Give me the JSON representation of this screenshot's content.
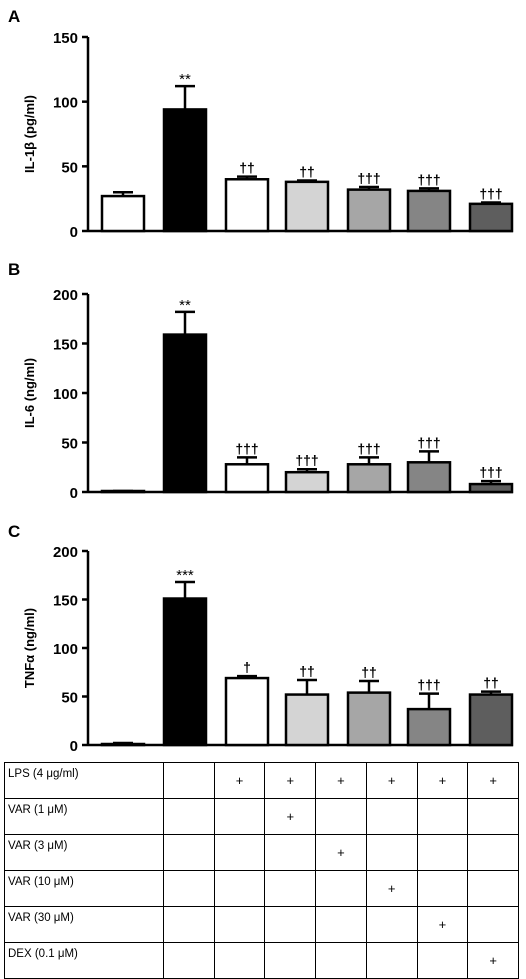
{
  "chart_data": [
    {
      "type": "bar",
      "panel_label": "A",
      "ylabel": "IL-1β (pg/ml)",
      "ylim": [
        0,
        150
      ],
      "yticks": [
        0,
        50,
        100,
        150
      ],
      "values": [
        27,
        94,
        40,
        38,
        32,
        31,
        21
      ],
      "errors": [
        3,
        18,
        2,
        1,
        2,
        2,
        1
      ],
      "annotations": [
        "",
        "**",
        "††",
        "††",
        "†††",
        "†††",
        "†††"
      ],
      "colors": [
        "#ffffff",
        "#000000",
        "#ffffff",
        "#d4d4d4",
        "#a6a6a6",
        "#858585",
        "#5e5e5e"
      ]
    },
    {
      "type": "bar",
      "panel_label": "B",
      "ylabel": "IL-6 (ng/ml)",
      "ylim": [
        0,
        200
      ],
      "yticks": [
        0,
        50,
        100,
        150,
        200
      ],
      "values": [
        0.5,
        159,
        28,
        20,
        28,
        30,
        8
      ],
      "errors": [
        0.5,
        23,
        7,
        3,
        7,
        11,
        3
      ],
      "annotations": [
        "",
        "**",
        "†††",
        "†††",
        "†††",
        "†††",
        "†††"
      ],
      "colors": [
        "#ffffff",
        "#000000",
        "#ffffff",
        "#d4d4d4",
        "#a6a6a6",
        "#858585",
        "#5e5e5e"
      ]
    },
    {
      "type": "bar",
      "panel_label": "C",
      "ylabel": "TNFα (ng/ml)",
      "ylim": [
        0,
        200
      ],
      "yticks": [
        0,
        50,
        100,
        150,
        200
      ],
      "values": [
        1,
        151,
        69,
        52,
        54,
        37,
        52
      ],
      "errors": [
        1,
        17,
        2,
        15,
        12,
        16,
        3
      ],
      "annotations": [
        "",
        "***",
        "†",
        "††",
        "††",
        "†††",
        "††"
      ],
      "colors": [
        "#ffffff",
        "#000000",
        "#ffffff",
        "#d4d4d4",
        "#a6a6a6",
        "#858585",
        "#5e5e5e"
      ]
    }
  ],
  "conditions_table": {
    "rows": [
      {
        "label": "LPS (4 μg/ml)",
        "cells": [
          "",
          "+",
          "+",
          "+",
          "+",
          "+",
          "+"
        ]
      },
      {
        "label": "VAR (1 μM)",
        "cells": [
          "",
          "",
          "+",
          "",
          "",
          "",
          ""
        ]
      },
      {
        "label": "VAR (3 μM)",
        "cells": [
          "",
          "",
          "",
          "+",
          "",
          "",
          ""
        ]
      },
      {
        "label": "VAR (10 μM)",
        "cells": [
          "",
          "",
          "",
          "",
          "+",
          "",
          ""
        ]
      },
      {
        "label": "VAR (30 μM)",
        "cells": [
          "",
          "",
          "",
          "",
          "",
          "+",
          ""
        ]
      },
      {
        "label": "DEX (0.1 μM)",
        "cells": [
          "",
          "",
          "",
          "",
          "",
          "",
          "+"
        ]
      }
    ]
  }
}
